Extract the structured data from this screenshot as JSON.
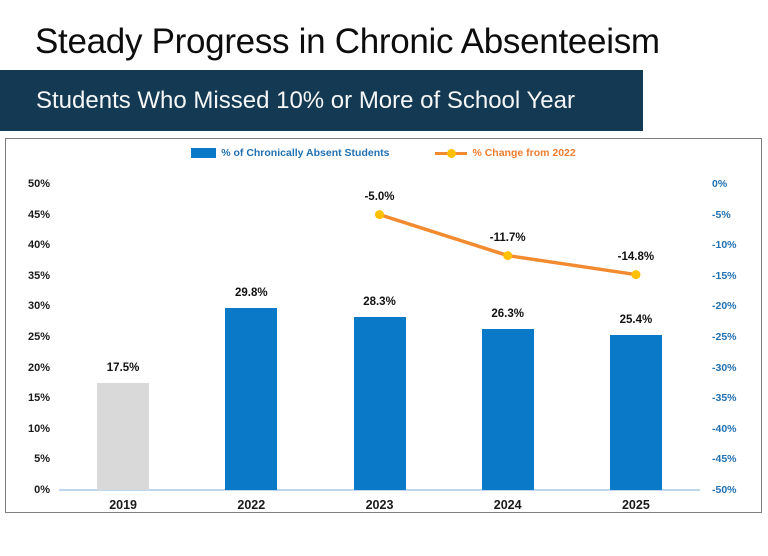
{
  "page": {
    "title": "Steady Progress in Chronic Absenteeism"
  },
  "banner": {
    "subtitle": "Students Who Missed 10% or More of School Year"
  },
  "legend": {
    "items": [
      {
        "label": "% of Chronically Absent Students",
        "color": "#0a79c7",
        "swatch": "bar"
      },
      {
        "label": "% Change from 2022",
        "color": "#ed7d31",
        "swatch": "line"
      }
    ]
  },
  "colors": {
    "banner_background": "#143a53",
    "bar_blue": "#0a79c7",
    "bar_gray": "#d9d9d9",
    "line_orange": "#f28b30",
    "marker_yellow": "#ffc000",
    "axis_right_text": "#2271b3",
    "baseline_blue": "#bdd7ee"
  },
  "chart_data": {
    "type": "bar",
    "subtype": "bar+line-combo",
    "categories": [
      "2019",
      "2022",
      "2023",
      "2024",
      "2025"
    ],
    "series": [
      {
        "name": "% of Chronically Absent Students",
        "type": "bar",
        "axis": "left",
        "values": [
          17.5,
          29.8,
          28.3,
          26.3,
          25.4
        ],
        "labels": [
          "17.5%",
          "29.8%",
          "28.3%",
          "26.3%",
          "25.4%"
        ],
        "bar_colors": [
          "#d9d9d9",
          "#0a79c7",
          "#0a79c7",
          "#0a79c7",
          "#0a79c7"
        ]
      },
      {
        "name": "% Change from 2022",
        "type": "line",
        "axis": "right",
        "values": [
          null,
          null,
          -5.0,
          -11.7,
          -14.8
        ],
        "labels": [
          "",
          "",
          "-5.0%",
          "-11.7%",
          "-14.8%"
        ],
        "color": "#f28b30",
        "marker_color": "#ffc000"
      }
    ],
    "left_axis": {
      "min": 0,
      "max": 50,
      "ticks": [
        "50%",
        "45%",
        "40%",
        "35%",
        "30%",
        "25%",
        "20%",
        "15%",
        "10%",
        "5%",
        "0%"
      ]
    },
    "right_axis": {
      "min": -50,
      "max": 0,
      "ticks": [
        "0%",
        "-5%",
        "-10%",
        "-15%",
        "-20%",
        "-25%",
        "-30%",
        "-35%",
        "-40%",
        "-45%",
        "-50%"
      ]
    },
    "gridlines": false,
    "legend_position": "top-center"
  }
}
